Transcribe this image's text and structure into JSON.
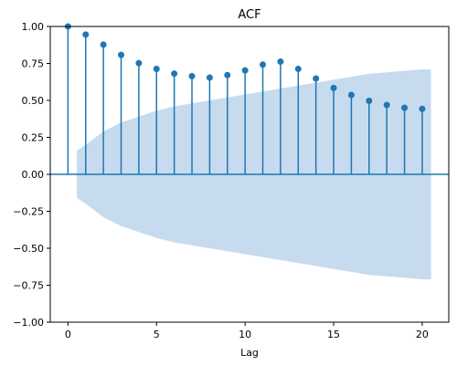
{
  "chart_data": {
    "type": "stem",
    "title": "ACF",
    "xlabel": "Lag",
    "ylabel": "",
    "xlim": [
      -1,
      21.5
    ],
    "ylim": [
      -1.0,
      1.0
    ],
    "xticks": [
      0,
      5,
      10,
      15,
      20
    ],
    "yticks": [
      -1.0,
      -0.75,
      -0.5,
      -0.25,
      0.0,
      0.25,
      0.5,
      0.75,
      1.0
    ],
    "ytick_labels": [
      "−1.00",
      "−0.75",
      "−0.50",
      "−0.25",
      "0.00",
      "0.25",
      "0.50",
      "0.75",
      "1.00"
    ],
    "xtick_labels": [
      "0",
      "5",
      "10",
      "15",
      "20"
    ],
    "lags": [
      0,
      1,
      2,
      3,
      4,
      5,
      6,
      7,
      8,
      9,
      10,
      11,
      12,
      13,
      14,
      15,
      16,
      17,
      18,
      19,
      20
    ],
    "acf": [
      1.0,
      0.945,
      0.877,
      0.808,
      0.752,
      0.713,
      0.681,
      0.664,
      0.654,
      0.671,
      0.703,
      0.742,
      0.762,
      0.713,
      0.648,
      0.584,
      0.537,
      0.497,
      0.469,
      0.45,
      0.443
    ],
    "confidence_band": {
      "lags": [
        0.5,
        1,
        2,
        3,
        4,
        5,
        6,
        7,
        8,
        9,
        10,
        11,
        12,
        13,
        14,
        15,
        16,
        17,
        18,
        19,
        20,
        20.5
      ],
      "upper": [
        0.16,
        0.2,
        0.29,
        0.35,
        0.39,
        0.43,
        0.46,
        0.48,
        0.5,
        0.52,
        0.54,
        0.56,
        0.58,
        0.6,
        0.62,
        0.64,
        0.66,
        0.68,
        0.69,
        0.7,
        0.71,
        0.71
      ]
    },
    "colors": {
      "stem": "#1f77b4",
      "band": "#c6dbee",
      "zero_line": "#1f77b4"
    }
  }
}
